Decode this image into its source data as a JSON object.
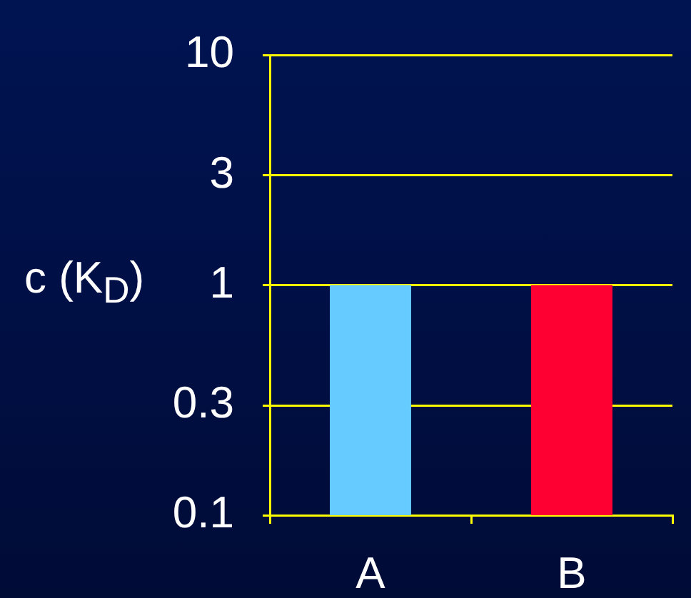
{
  "chart_data": {
    "type": "bar",
    "ylabel": "c (K$_{D}$)",
    "categories": [
      "A",
      "B"
    ],
    "values": [
      1,
      1
    ],
    "colors": [
      "#66ccff",
      "#ff0033"
    ],
    "log": true,
    "ylim": [
      0.1,
      10
    ],
    "yticks": [
      0.1,
      0.3,
      1,
      3,
      10
    ],
    "grid": "y"
  }
}
